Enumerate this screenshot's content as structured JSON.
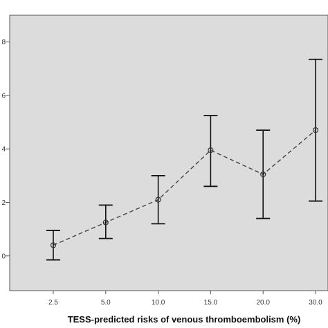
{
  "chart_data": {
    "type": "line",
    "xlabel": "TESS-predicted risks of venous thromboembolism (%)",
    "ylabel": "",
    "categories": [
      "2.5",
      "5.0",
      "10.0",
      "15.0",
      "20.0",
      "30.0"
    ],
    "y_ticks_visible": [
      "8",
      "6",
      "4",
      "2",
      "0"
    ],
    "ylim": [
      -1.3,
      9.0
    ],
    "grid": false,
    "series": [
      {
        "mean": [
          0.4,
          1.25,
          2.1,
          3.95,
          3.05,
          4.7
        ],
        "lower": [
          -0.15,
          0.65,
          1.2,
          2.6,
          1.4,
          2.05
        ],
        "upper": [
          0.95,
          1.9,
          3.0,
          5.25,
          4.7,
          7.35
        ]
      }
    ],
    "colors": {
      "plot_background": "#dcdcdc",
      "line": "#444444",
      "error_bar": "#111111"
    }
  }
}
